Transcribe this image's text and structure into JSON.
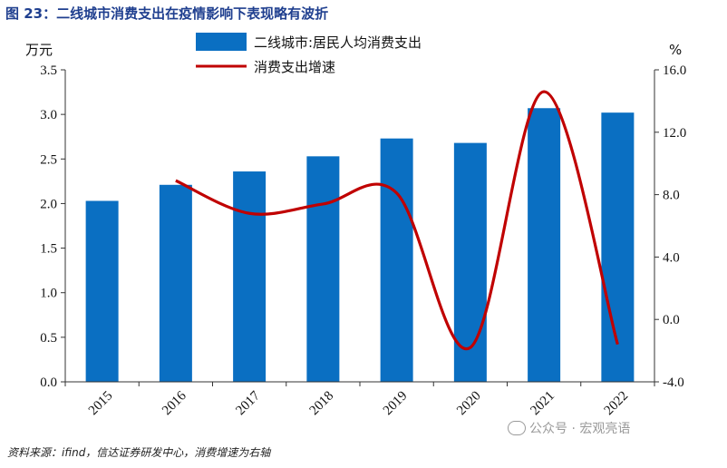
{
  "title": "图 23：二线城市消费支出在疫情影响下表现略有波折",
  "source": "资料来源：ifind，信达证券研发中心，消费增速为右轴",
  "watermark": "公众号 · 宏观亮语",
  "chart_data": {
    "type": "bar+line",
    "categories": [
      "2015",
      "2016",
      "2017",
      "2018",
      "2019",
      "2020",
      "2021",
      "2022"
    ],
    "series": [
      {
        "name": "二线城市:居民人均消费支出",
        "type": "bar",
        "axis": "left",
        "values": [
          2.03,
          2.21,
          2.36,
          2.53,
          2.73,
          2.68,
          3.07,
          3.02
        ],
        "color": "#0a6fc2"
      },
      {
        "name": "消费支出增速",
        "type": "line",
        "axis": "right",
        "values": [
          null,
          8.9,
          6.8,
          7.4,
          8.1,
          -1.8,
          14.6,
          -1.6
        ],
        "color": "#c00000"
      }
    ],
    "y_left": {
      "unit": "万元",
      "lim": [
        0,
        3.5
      ],
      "ticks": [
        "0.0",
        "0.5",
        "1.0",
        "1.5",
        "2.0",
        "2.5",
        "3.0",
        "3.5"
      ]
    },
    "y_right": {
      "unit": "%",
      "lim": [
        -4,
        16
      ],
      "ticks": [
        "-4.0",
        "0.0",
        "4.0",
        "8.0",
        "12.0",
        "16.0"
      ]
    },
    "legend_position": "top-center",
    "grid": false
  }
}
